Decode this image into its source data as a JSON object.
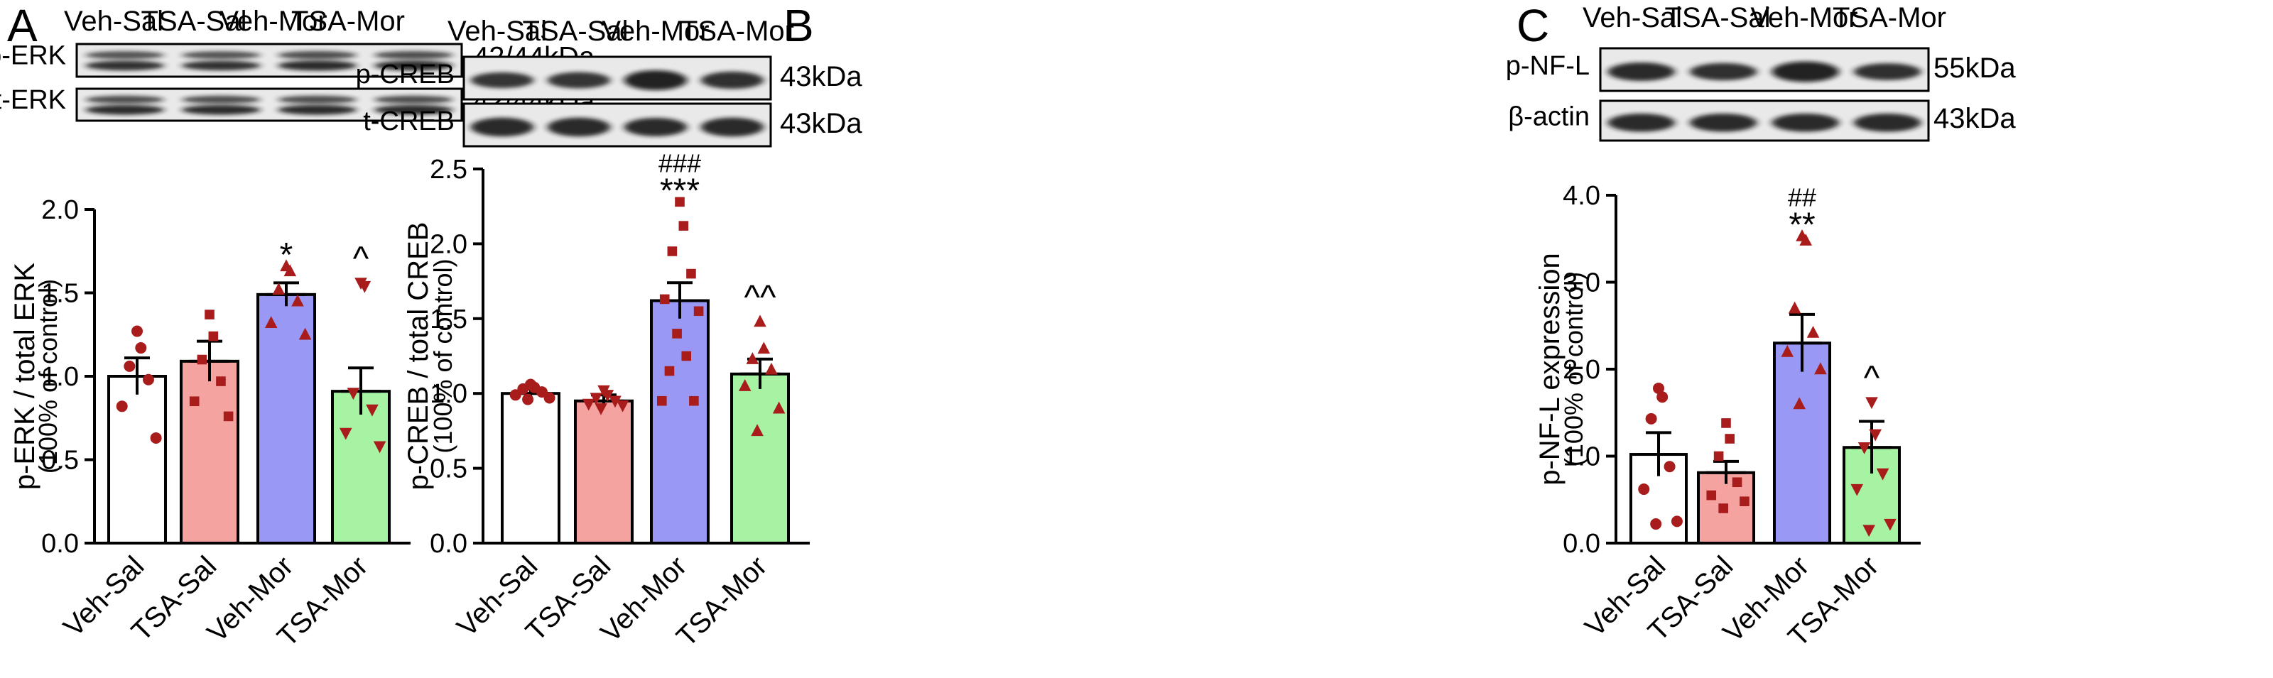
{
  "chart_data": [
    {
      "panel": "A",
      "type": "bar",
      "lane_labels": [
        "Veh-Sal",
        "TSA-Sal",
        "Veh-Mor",
        "TSA-Mor"
      ],
      "blots": [
        {
          "label": "p-ERK",
          "size": "42/44kDa",
          "doublet": true,
          "intensity": [
            0.75,
            0.7,
            0.85,
            0.8
          ]
        },
        {
          "label": "t-ERK",
          "size": "42/44kDa",
          "doublet": true,
          "intensity": [
            0.8,
            0.8,
            0.82,
            0.8
          ]
        }
      ],
      "categories": [
        "Veh-Sal",
        "TSA-Sal",
        "Veh-Mor",
        "TSA-Mor"
      ],
      "values": [
        1.0,
        1.09,
        1.49,
        0.91
      ],
      "sem": [
        0.11,
        0.12,
        0.07,
        0.14
      ],
      "colors": [
        "#ffffff",
        "#f4a3a0",
        "#9999f5",
        "#a6f3a4"
      ],
      "markers": [
        "circle",
        "square",
        "triangle-up",
        "triangle-down"
      ],
      "points": [
        [
          1.27,
          1.17,
          1.06,
          0.98,
          0.82,
          0.63
        ],
        [
          1.37,
          1.24,
          1.1,
          0.97,
          0.85,
          0.76
        ],
        [
          1.66,
          1.63,
          1.52,
          1.45,
          1.32,
          1.25
        ],
        [
          1.56,
          1.54,
          0.9,
          0.8,
          0.66,
          0.58
        ]
      ],
      "significance": [
        "",
        "",
        "*",
        "^"
      ],
      "ylabel": "p-ERK / total ERK",
      "ylabel2": "(100% of control)",
      "ylim": [
        0,
        2.0
      ],
      "yticks": [
        "0.0",
        "0.5",
        "1.0",
        "1.5",
        "2.0"
      ]
    },
    {
      "panel": "B",
      "type": "bar",
      "lane_labels": [
        "Veh-Sal",
        "TSA-Sal",
        "Veh-Mor",
        "TSA-Mor"
      ],
      "blots": [
        {
          "label": "p-CREB",
          "size": "43kDa",
          "doublet": false,
          "intensity": [
            0.55,
            0.6,
            0.95,
            0.7
          ]
        },
        {
          "label": "t-CREB",
          "size": "43kDa",
          "doublet": false,
          "intensity": [
            0.85,
            0.85,
            0.8,
            0.85
          ]
        }
      ],
      "categories": [
        "Veh-Sal",
        "TSA-Sal",
        "Veh-Mor",
        "TSA-Mor"
      ],
      "values": [
        1.0,
        0.95,
        1.62,
        1.13
      ],
      "sem": [
        0.03,
        0.04,
        0.12,
        0.1
      ],
      "colors": [
        "#ffffff",
        "#f4a3a0",
        "#9999f5",
        "#a6f3a4"
      ],
      "markers": [
        "circle",
        "triangle-down",
        "square",
        "triangle-up"
      ],
      "points": [
        [
          1.06,
          1.04,
          1.03,
          1.01,
          0.99,
          0.97,
          0.96
        ],
        [
          1.02,
          0.99,
          0.97,
          0.95,
          0.93,
          0.92,
          0.9
        ],
        [
          2.28,
          2.12,
          1.95,
          1.8,
          1.63,
          1.55,
          1.4,
          1.25,
          1.15,
          0.95,
          0.95
        ],
        [
          1.48,
          1.3,
          1.23,
          1.16,
          1.05,
          0.9,
          0.75
        ]
      ],
      "significance": [
        "",
        "",
        "***",
        "^^"
      ],
      "significance2": [
        "",
        "",
        "###",
        ""
      ],
      "ylabel": "p-CREB / total CREB",
      "ylabel2": "(100% of control)",
      "ylim": [
        0,
        2.5
      ],
      "yticks": [
        "0.0",
        "0.5",
        "1.0",
        "1.5",
        "2.0",
        "2.5"
      ]
    },
    {
      "panel": "C",
      "type": "bar",
      "lane_labels": [
        "Veh-Sal",
        "TSA-Sal",
        "Veh-Mor",
        "TSA-Mor"
      ],
      "blots": [
        {
          "label": "p-NF-L",
          "size": "55kDa",
          "doublet": false,
          "intensity": [
            0.8,
            0.7,
            1.0,
            0.65
          ]
        },
        {
          "label": "β-actin",
          "size": "43kDa",
          "doublet": false,
          "intensity": [
            0.9,
            0.9,
            0.9,
            0.9
          ]
        }
      ],
      "categories": [
        "Veh-Sal",
        "TSA-Sal",
        "Veh-Mor",
        "TSA-Mor"
      ],
      "values": [
        1.02,
        0.81,
        2.3,
        1.1
      ],
      "sem": [
        0.25,
        0.13,
        0.33,
        0.3
      ],
      "colors": [
        "#ffffff",
        "#f4a3a0",
        "#9999f5",
        "#a6f3a4"
      ],
      "markers": [
        "circle",
        "square",
        "triangle-up",
        "triangle-down"
      ],
      "points": [
        [
          1.78,
          1.68,
          1.43,
          0.88,
          0.62,
          0.25,
          0.22
        ],
        [
          1.38,
          1.2,
          1.0,
          0.7,
          0.55,
          0.48,
          0.4
        ],
        [
          3.53,
          3.48,
          2.7,
          2.42,
          2.2,
          2.0,
          1.6
        ],
        [
          1.62,
          1.25,
          1.1,
          0.8,
          0.62,
          0.22,
          0.15
        ]
      ],
      "significance": [
        "",
        "",
        "**",
        "^"
      ],
      "significance2": [
        "",
        "",
        "##",
        ""
      ],
      "ylabel": "p-NF-L expression",
      "ylabel2": "(100% of control)",
      "ylim": [
        0,
        4.0
      ],
      "yticks": [
        "0.0",
        "1.0",
        "2.0",
        "3.0",
        "4.0"
      ]
    }
  ],
  "point_color": "#a81c1c",
  "stroke_color": "#000000"
}
